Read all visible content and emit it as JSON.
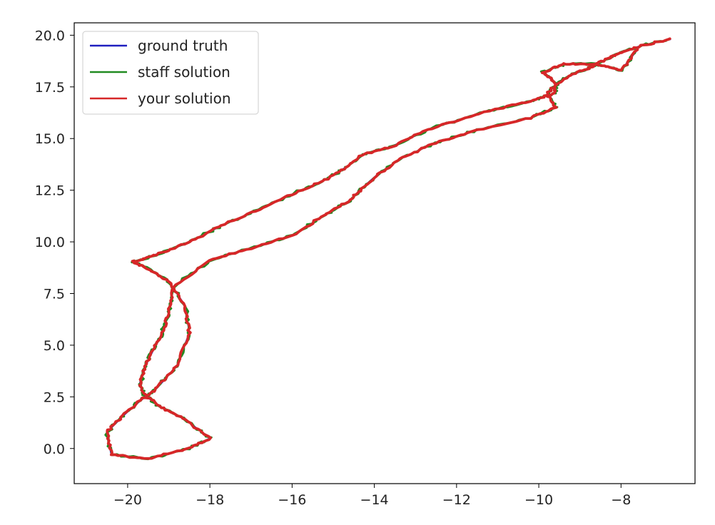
{
  "chart_data": {
    "type": "line",
    "title": "",
    "xlabel": "",
    "ylabel": "",
    "xlim": [
      -21.3,
      -6.2
    ],
    "ylim": [
      -1.7,
      20.6
    ],
    "xticks": [
      -20,
      -18,
      -16,
      -14,
      -12,
      -10,
      -8
    ],
    "yticks": [
      0.0,
      2.5,
      5.0,
      7.5,
      10.0,
      12.5,
      15.0,
      17.5,
      20.0
    ],
    "xtick_labels": [
      "−20",
      "−18",
      "−16",
      "−14",
      "−12",
      "−10",
      "−8"
    ],
    "ytick_labels": [
      "0.0",
      "2.5",
      "5.0",
      "7.5",
      "10.0",
      "12.5",
      "15.0",
      "17.5",
      "20.0"
    ],
    "grid": false,
    "legend_position": "top-left",
    "series": [
      {
        "name": "ground truth",
        "color": "#1f1fbf",
        "x": [
          -6.8,
          -7.5,
          -8.1,
          -8.4,
          -8.8,
          -9.4,
          -9.8,
          -9.6,
          -10.2,
          -11.5,
          -12.5,
          -13.3,
          -13.9,
          -14.3,
          -14.6,
          -15.2,
          -16.0,
          -17.0,
          -18.0,
          -18.9,
          -19.0,
          -19.2,
          -19.5,
          -19.7,
          -19.6,
          -19.2,
          -18.6,
          -18.0,
          -18.5,
          -19.5,
          -20.4,
          -20.5,
          -20.1,
          -19.7,
          -19.3,
          -18.8,
          -18.5,
          -18.6,
          -19.0,
          -19.6,
          -19.9,
          -19.8,
          -19.3,
          -18.6,
          -17.8,
          -16.9,
          -16.0,
          -15.2,
          -14.7,
          -14.3,
          -13.6,
          -12.6,
          -11.3,
          -10.2,
          -9.6,
          -9.6,
          -9.9,
          -9.4,
          -8.6,
          -8.0,
          -7.6
        ],
        "y": [
          19.8,
          19.5,
          19.1,
          18.8,
          18.4,
          17.9,
          17.2,
          16.5,
          16.0,
          15.4,
          14.8,
          14.1,
          13.3,
          12.6,
          12.0,
          11.3,
          10.3,
          9.7,
          9.1,
          7.8,
          6.5,
          5.4,
          4.3,
          3.2,
          2.6,
          2.0,
          1.4,
          0.5,
          0.0,
          -0.5,
          -0.3,
          0.8,
          1.6,
          2.3,
          2.9,
          4.0,
          5.6,
          6.9,
          8.1,
          8.8,
          9.05,
          9.05,
          9.4,
          9.9,
          10.7,
          11.5,
          12.3,
          13.0,
          13.6,
          14.2,
          14.6,
          15.5,
          16.3,
          16.8,
          17.2,
          17.7,
          18.2,
          18.6,
          18.6,
          18.3,
          19.3
        ]
      },
      {
        "name": "staff solution",
        "color": "#228b22",
        "x": [
          -6.8,
          -7.5,
          -8.1,
          -8.4,
          -8.8,
          -9.4,
          -9.8,
          -9.6,
          -10.2,
          -11.5,
          -12.5,
          -13.3,
          -13.9,
          -14.3,
          -14.6,
          -15.2,
          -16.0,
          -17.0,
          -18.0,
          -18.9,
          -19.0,
          -19.2,
          -19.5,
          -19.7,
          -19.6,
          -19.2,
          -18.6,
          -18.0,
          -18.5,
          -19.5,
          -20.4,
          -20.5,
          -20.1,
          -19.7,
          -19.3,
          -18.8,
          -18.5,
          -18.6,
          -19.0,
          -19.6,
          -19.9,
          -19.8,
          -19.3,
          -18.6,
          -17.8,
          -16.9,
          -16.0,
          -15.2,
          -14.7,
          -14.3,
          -13.6,
          -12.6,
          -11.3,
          -10.2,
          -9.6,
          -9.6,
          -9.9,
          -9.4,
          -8.6,
          -8.0,
          -7.6
        ],
        "y": [
          19.8,
          19.5,
          19.1,
          18.8,
          18.4,
          17.9,
          17.2,
          16.5,
          16.0,
          15.4,
          14.8,
          14.1,
          13.3,
          12.6,
          12.0,
          11.3,
          10.3,
          9.7,
          9.1,
          7.8,
          6.5,
          5.4,
          4.3,
          3.2,
          2.6,
          2.0,
          1.4,
          0.5,
          0.0,
          -0.5,
          -0.3,
          0.8,
          1.6,
          2.3,
          2.9,
          4.0,
          5.6,
          6.9,
          8.1,
          8.8,
          9.05,
          9.05,
          9.4,
          9.9,
          10.7,
          11.5,
          12.3,
          13.0,
          13.6,
          14.2,
          14.6,
          15.5,
          16.3,
          16.8,
          17.2,
          17.7,
          18.2,
          18.6,
          18.6,
          18.3,
          19.3
        ]
      },
      {
        "name": "your solution",
        "color": "#d62728",
        "x": [
          -6.8,
          -7.5,
          -8.1,
          -8.4,
          -8.8,
          -9.4,
          -9.8,
          -9.6,
          -10.2,
          -11.5,
          -12.5,
          -13.3,
          -13.9,
          -14.3,
          -14.6,
          -15.2,
          -16.0,
          -17.0,
          -18.0,
          -18.9,
          -19.0,
          -19.2,
          -19.5,
          -19.7,
          -19.6,
          -19.2,
          -18.6,
          -18.0,
          -18.5,
          -19.5,
          -20.4,
          -20.5,
          -20.1,
          -19.7,
          -19.3,
          -18.8,
          -18.5,
          -18.6,
          -19.0,
          -19.6,
          -19.9,
          -19.8,
          -19.3,
          -18.6,
          -17.8,
          -16.9,
          -16.0,
          -15.2,
          -14.7,
          -14.3,
          -13.6,
          -12.6,
          -11.3,
          -10.2,
          -9.6,
          -9.6,
          -9.9,
          -9.4,
          -8.6,
          -8.0,
          -7.6
        ],
        "y": [
          19.8,
          19.5,
          19.1,
          18.8,
          18.4,
          17.9,
          17.2,
          16.5,
          16.0,
          15.4,
          14.8,
          14.1,
          13.3,
          12.6,
          12.0,
          11.3,
          10.3,
          9.7,
          9.1,
          7.8,
          6.5,
          5.4,
          4.3,
          3.2,
          2.6,
          2.0,
          1.4,
          0.5,
          0.0,
          -0.5,
          -0.3,
          0.8,
          1.6,
          2.3,
          2.9,
          4.0,
          5.6,
          6.9,
          8.1,
          8.8,
          9.05,
          9.05,
          9.4,
          9.9,
          10.7,
          11.5,
          12.3,
          13.0,
          13.6,
          14.2,
          14.6,
          15.5,
          16.3,
          16.8,
          17.2,
          17.7,
          18.2,
          18.6,
          18.6,
          18.3,
          19.3
        ]
      }
    ]
  }
}
